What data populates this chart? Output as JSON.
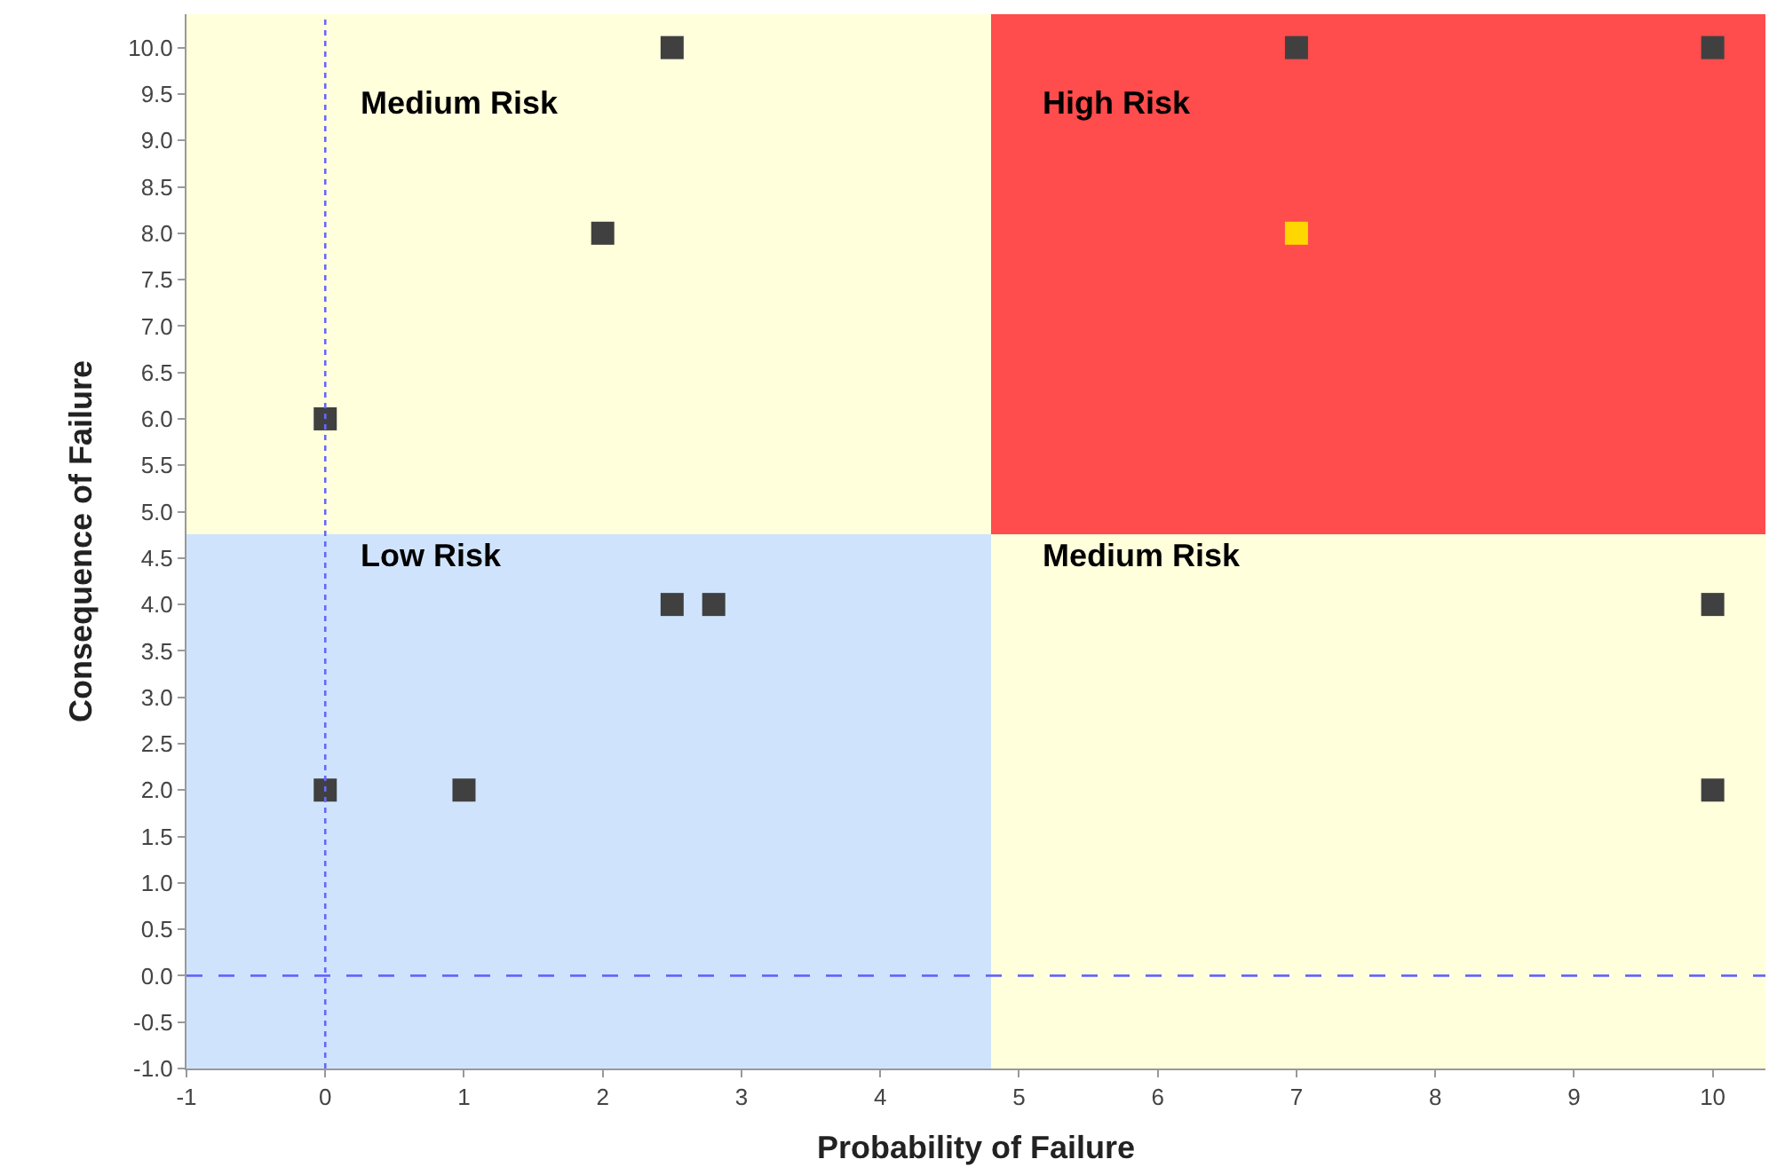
{
  "chart_data": {
    "type": "scatter",
    "xlabel": "Probability of Failure",
    "ylabel": "Consequence of Failure",
    "series": [
      {
        "type": "bar",
        "x": [
          1.9,
          7.59
        ],
        "base": [
          -1,
          -1
        ],
        "values": [
          5.75,
          5.75
        ],
        "colors": [
          "#cfe4fc",
          "#ffffdc"
        ]
      },
      {
        "type": "bar",
        "x": [
          1.9,
          7.59
        ],
        "base": [
          4.75,
          4.75
        ],
        "values": [
          5.61,
          5.61
        ],
        "colors": [
          "#ffffdc",
          "#ff4c4c"
        ]
      },
      {
        "x": [
          2.5,
          7,
          10,
          2,
          7,
          0,
          2.5,
          2.8,
          10,
          0,
          1,
          10
        ],
        "values": [
          10,
          10,
          10,
          8,
          8,
          6,
          4,
          4,
          4,
          2,
          2,
          2
        ],
        "marker": "square",
        "colors": [
          "#404040",
          "#404040",
          "#404040",
          "#404040",
          "#ffd700",
          "#404040",
          "#404040",
          "#404040",
          "#404040",
          "#404040",
          "#404040",
          "#404040"
        ]
      }
    ],
    "annotations": [
      "Medium Risk",
      "High Risk",
      "Low Risk",
      "Medium Risk"
    ],
    "xlim": [
      -1,
      10.38
    ],
    "ylim": [
      -1,
      10.36
    ],
    "xticks": [
      -1,
      0,
      1,
      2,
      3,
      4,
      5,
      6,
      7,
      8,
      9,
      10
    ],
    "yticks": [
      {
        "value": -1,
        "label": "-1.0"
      },
      {
        "value": -0.5,
        "label": "-0.5"
      },
      {
        "value": 0,
        "label": "0.0"
      },
      {
        "value": 0.5,
        "label": "0.5"
      },
      {
        "value": 1,
        "label": "1.0"
      },
      {
        "value": 1.5,
        "label": "1.5"
      },
      {
        "value": 2,
        "label": "2.0"
      },
      {
        "value": 2.5,
        "label": "2.5"
      },
      {
        "value": 3,
        "label": "3.0"
      },
      {
        "value": 3.5,
        "label": "3.5"
      },
      {
        "value": 4,
        "label": "4.0"
      },
      {
        "value": 4.5,
        "label": "4.5"
      },
      {
        "value": 5,
        "label": "5.0"
      },
      {
        "value": 5.5,
        "label": "5.5"
      },
      {
        "value": 6,
        "label": "6.0"
      },
      {
        "value": 6.5,
        "label": "6.5"
      },
      {
        "value": 7,
        "label": "7.0"
      },
      {
        "value": 7.5,
        "label": "7.5"
      },
      {
        "value": 8,
        "label": "8.0"
      },
      {
        "value": 8.5,
        "label": "8.5"
      },
      {
        "value": 9,
        "label": "9.0"
      },
      {
        "value": 9.5,
        "label": "9.5"
      },
      {
        "value": 10,
        "label": "10.0"
      }
    ],
    "ref_lines": [
      {
        "axis": "x",
        "value": 0,
        "color": "#6666ff",
        "line_style": "dotted"
      },
      {
        "axis": "y",
        "value": 0,
        "color": "#6666ff",
        "line_style": "dashed"
      }
    ]
  }
}
